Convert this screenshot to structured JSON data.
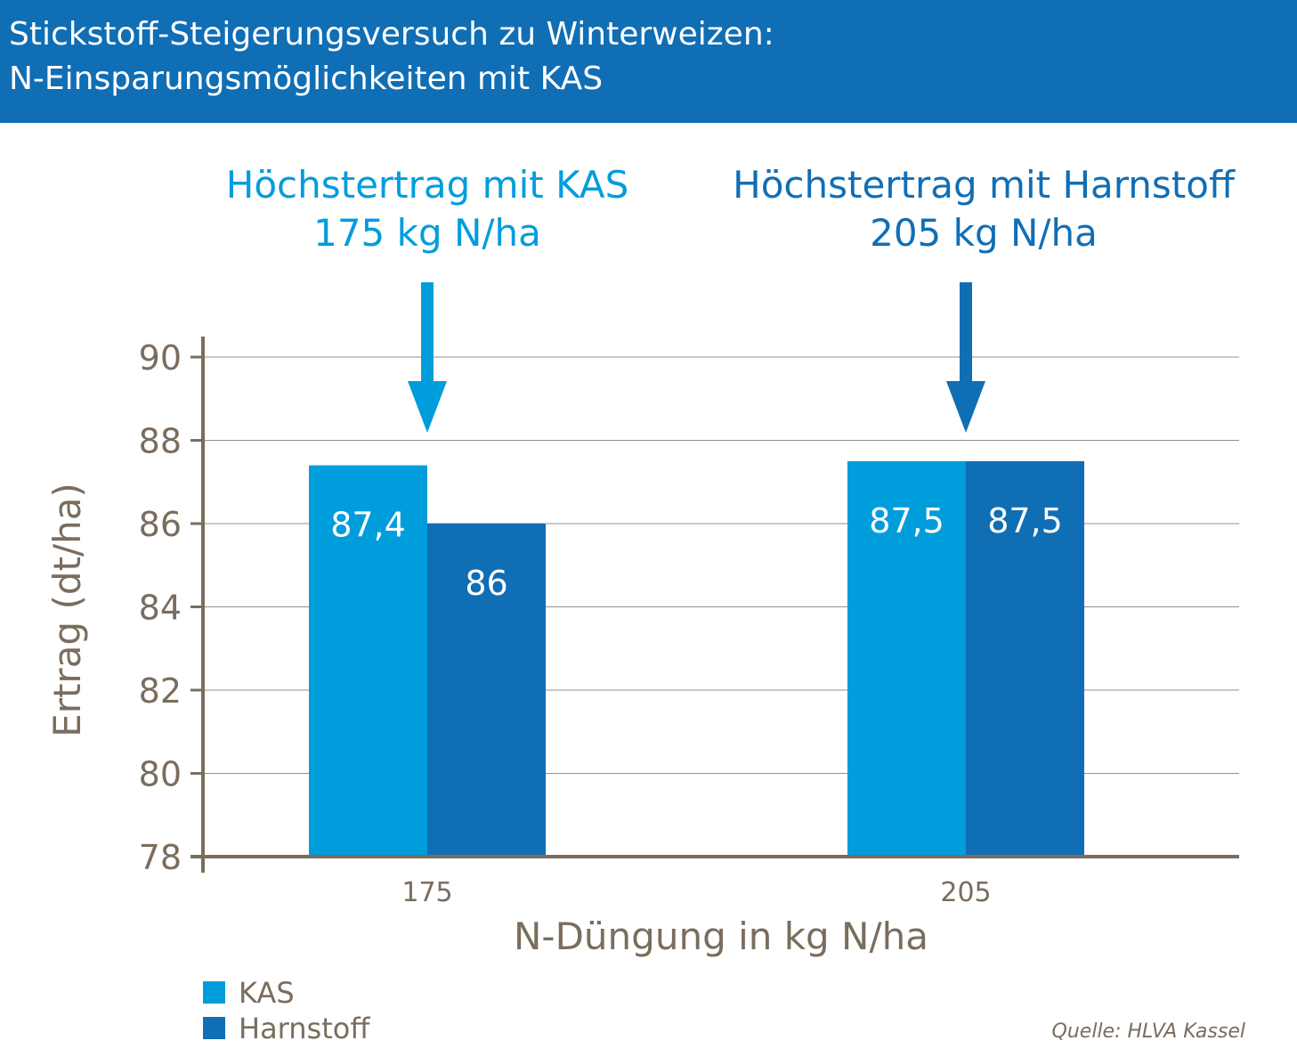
{
  "header": {
    "line1": "Stickstoff-Steigerungsversuch zu Winterweizen:",
    "line2": "N-Einsparungsmöglichkeiten mit KAS"
  },
  "chart_data": {
    "type": "bar",
    "categories": [
      "175",
      "205"
    ],
    "series": [
      {
        "name": "KAS",
        "values": [
          87.4,
          87.5
        ],
        "labels": [
          "87,4",
          "87,5"
        ],
        "color": "#009ddc"
      },
      {
        "name": "Harnstoff",
        "values": [
          86,
          87.5
        ],
        "labels": [
          "86",
          "87,5"
        ],
        "color": "#106eb5"
      }
    ],
    "xlabel": "N-Düngung in kg N/ha",
    "ylabel": "Ertrag (dt/ha)",
    "ylim": [
      78,
      90
    ],
    "yticks": [
      78,
      80,
      82,
      84,
      86,
      88,
      90
    ],
    "grid": true,
    "legend_placement": "bottom-left",
    "annotations": [
      {
        "line1": "Höchstertrag mit KAS",
        "line2": "175 kg N/ha",
        "category": "175",
        "color": "#009ddc"
      },
      {
        "line1": "Höchstertrag mit Harnstoff",
        "line2": "205 kg N/ha",
        "category": "205",
        "color": "#106eb5"
      }
    ],
    "axis_color": "#7a6d5d"
  },
  "source": "Quelle: HLVA Kassel"
}
